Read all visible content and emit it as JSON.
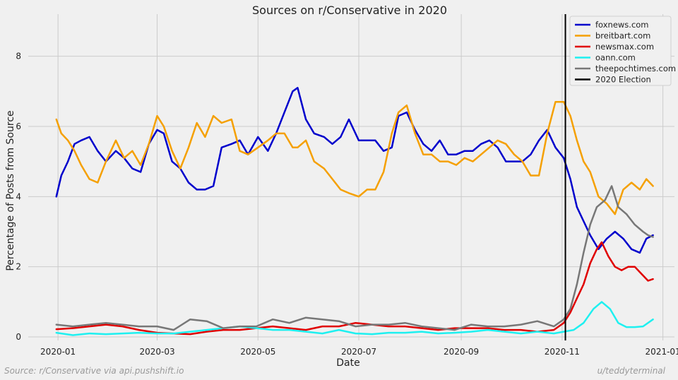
{
  "chart_data": {
    "type": "line",
    "title": "Sources on r/Conservative in 2020",
    "xlabel": "Date",
    "ylabel": "Percentage of Posts from Source",
    "x_ticks": [
      "2020-01",
      "2020-03",
      "2020-05",
      "2020-07",
      "2020-09",
      "2020-11",
      "2021-01"
    ],
    "x_tick_days": [
      0,
      60,
      121,
      182,
      244,
      305,
      366
    ],
    "y_ticks": [
      0,
      2,
      4,
      6,
      8
    ],
    "ylim": [
      -0.1,
      9.2
    ],
    "xlim": [
      "2019-12-14",
      "2021-01-08"
    ],
    "grid": true,
    "legend_position": "top-right",
    "series": [
      {
        "name": "foxnews.com",
        "color": "#0000cc",
        "x": [
          "2019-12-31",
          "2020-01-03",
          "2020-01-07",
          "2020-01-11",
          "2020-01-15",
          "2020-01-20",
          "2020-01-25",
          "2020-01-30",
          "2020-02-05",
          "2020-02-10",
          "2020-02-15",
          "2020-02-20",
          "2020-02-25",
          "2020-03-01",
          "2020-03-05",
          "2020-03-10",
          "2020-03-15",
          "2020-03-20",
          "2020-03-25",
          "2020-03-30",
          "2020-04-04",
          "2020-04-09",
          "2020-04-15",
          "2020-04-20",
          "2020-04-25",
          "2020-05-01",
          "2020-05-07",
          "2020-05-12",
          "2020-05-17",
          "2020-05-22",
          "2020-05-25",
          "2020-05-30",
          "2020-06-04",
          "2020-06-10",
          "2020-06-15",
          "2020-06-20",
          "2020-06-25",
          "2020-07-01",
          "2020-07-06",
          "2020-07-11",
          "2020-07-16",
          "2020-07-21",
          "2020-07-25",
          "2020-07-30",
          "2020-08-04",
          "2020-08-09",
          "2020-08-14",
          "2020-08-19",
          "2020-08-24",
          "2020-08-29",
          "2020-09-03",
          "2020-09-08",
          "2020-09-13",
          "2020-09-18",
          "2020-09-23",
          "2020-09-28",
          "2020-10-03",
          "2020-10-08",
          "2020-10-13",
          "2020-10-18",
          "2020-10-23",
          "2020-10-28",
          "2020-11-02",
          "2020-11-06",
          "2020-11-10",
          "2020-11-14",
          "2020-11-18",
          "2020-11-23",
          "2020-11-28",
          "2020-12-03",
          "2020-12-08",
          "2020-12-13",
          "2020-12-18",
          "2020-12-22",
          "2020-12-26"
        ],
        "values": [
          4.0,
          4.6,
          5.0,
          5.5,
          5.6,
          5.7,
          5.3,
          5.0,
          5.3,
          5.1,
          4.8,
          4.7,
          5.5,
          5.9,
          5.8,
          5.0,
          4.8,
          4.4,
          4.2,
          4.2,
          4.3,
          5.4,
          5.5,
          5.6,
          5.2,
          5.7,
          5.3,
          5.8,
          6.4,
          7.0,
          7.1,
          6.2,
          5.8,
          5.7,
          5.5,
          5.7,
          6.2,
          5.6,
          5.6,
          5.6,
          5.3,
          5.4,
          6.3,
          6.4,
          5.9,
          5.5,
          5.3,
          5.6,
          5.2,
          5.2,
          5.3,
          5.3,
          5.5,
          5.6,
          5.4,
          5.0,
          5.0,
          5.0,
          5.2,
          5.6,
          5.9,
          5.4,
          5.1,
          4.5,
          3.7,
          3.3,
          2.9,
          2.5,
          2.8,
          3.0,
          2.8,
          2.5,
          2.4,
          2.8,
          2.9
        ]
      },
      {
        "name": "breitbart.com",
        "color": "#f5a000",
        "x": [
          "2019-12-31",
          "2020-01-03",
          "2020-01-07",
          "2020-01-11",
          "2020-01-15",
          "2020-01-20",
          "2020-01-25",
          "2020-01-30",
          "2020-02-05",
          "2020-02-10",
          "2020-02-15",
          "2020-02-20",
          "2020-02-25",
          "2020-03-01",
          "2020-03-05",
          "2020-03-10",
          "2020-03-15",
          "2020-03-20",
          "2020-03-25",
          "2020-03-30",
          "2020-04-04",
          "2020-04-09",
          "2020-04-15",
          "2020-04-20",
          "2020-04-25",
          "2020-05-01",
          "2020-05-07",
          "2020-05-12",
          "2020-05-17",
          "2020-05-22",
          "2020-05-25",
          "2020-05-30",
          "2020-06-04",
          "2020-06-10",
          "2020-06-15",
          "2020-06-20",
          "2020-06-25",
          "2020-07-01",
          "2020-07-06",
          "2020-07-11",
          "2020-07-16",
          "2020-07-21",
          "2020-07-25",
          "2020-07-30",
          "2020-08-04",
          "2020-08-09",
          "2020-08-14",
          "2020-08-19",
          "2020-08-24",
          "2020-08-29",
          "2020-09-03",
          "2020-09-08",
          "2020-09-13",
          "2020-09-18",
          "2020-09-23",
          "2020-09-28",
          "2020-10-03",
          "2020-10-08",
          "2020-10-13",
          "2020-10-18",
          "2020-10-23",
          "2020-10-28",
          "2020-11-02",
          "2020-11-06",
          "2020-11-10",
          "2020-11-14",
          "2020-11-18",
          "2020-11-23",
          "2020-11-28",
          "2020-12-03",
          "2020-12-08",
          "2020-12-13",
          "2020-12-18",
          "2020-12-22",
          "2020-12-26"
        ],
        "values": [
          6.2,
          5.8,
          5.6,
          5.3,
          4.9,
          4.5,
          4.4,
          5.0,
          5.6,
          5.1,
          5.3,
          4.9,
          5.5,
          6.3,
          6.0,
          5.3,
          4.8,
          5.4,
          6.1,
          5.7,
          6.3,
          6.1,
          6.2,
          5.3,
          5.2,
          5.4,
          5.6,
          5.8,
          5.8,
          5.4,
          5.4,
          5.6,
          5.0,
          4.8,
          4.5,
          4.2,
          4.1,
          4.0,
          4.2,
          4.2,
          4.7,
          5.8,
          6.4,
          6.6,
          5.8,
          5.2,
          5.2,
          5.0,
          5.0,
          4.9,
          5.1,
          5.0,
          5.2,
          5.4,
          5.6,
          5.5,
          5.2,
          5.0,
          4.6,
          4.6,
          5.8,
          6.7,
          6.7,
          6.3,
          5.6,
          5.0,
          4.7,
          4.0,
          3.8,
          3.5,
          4.2,
          4.4,
          4.2,
          4.5,
          4.3
        ]
      },
      {
        "name": "newsmax.com",
        "color": "#e00000",
        "x": [
          "2019-12-31",
          "2020-01-10",
          "2020-01-20",
          "2020-01-30",
          "2020-02-09",
          "2020-02-19",
          "2020-03-01",
          "2020-03-11",
          "2020-03-21",
          "2020-03-31",
          "2020-04-10",
          "2020-04-20",
          "2020-04-30",
          "2020-05-10",
          "2020-05-20",
          "2020-05-30",
          "2020-06-09",
          "2020-06-19",
          "2020-06-29",
          "2020-07-09",
          "2020-07-19",
          "2020-07-29",
          "2020-08-08",
          "2020-08-18",
          "2020-08-28",
          "2020-09-07",
          "2020-09-17",
          "2020-09-27",
          "2020-10-07",
          "2020-10-17",
          "2020-10-27",
          "2020-11-02",
          "2020-11-06",
          "2020-11-10",
          "2020-11-14",
          "2020-11-18",
          "2020-11-22",
          "2020-11-25",
          "2020-11-29",
          "2020-12-03",
          "2020-12-07",
          "2020-12-11",
          "2020-12-15",
          "2020-12-19",
          "2020-12-23",
          "2020-12-26"
        ],
        "values": [
          0.22,
          0.25,
          0.3,
          0.35,
          0.3,
          0.2,
          0.12,
          0.1,
          0.08,
          0.15,
          0.2,
          0.2,
          0.25,
          0.3,
          0.25,
          0.2,
          0.3,
          0.3,
          0.4,
          0.35,
          0.3,
          0.3,
          0.25,
          0.2,
          0.25,
          0.25,
          0.25,
          0.2,
          0.2,
          0.15,
          0.2,
          0.4,
          0.7,
          1.1,
          1.5,
          2.1,
          2.5,
          2.7,
          2.3,
          2.0,
          1.9,
          2.0,
          2.0,
          1.8,
          1.6,
          1.65
        ]
      },
      {
        "name": "oann.com",
        "color": "#1ef0f0",
        "x": [
          "2019-12-31",
          "2020-01-10",
          "2020-01-20",
          "2020-01-30",
          "2020-02-09",
          "2020-02-19",
          "2020-03-01",
          "2020-03-11",
          "2020-03-21",
          "2020-03-31",
          "2020-04-10",
          "2020-04-20",
          "2020-04-30",
          "2020-05-10",
          "2020-05-20",
          "2020-05-30",
          "2020-06-09",
          "2020-06-19",
          "2020-06-29",
          "2020-07-09",
          "2020-07-19",
          "2020-07-29",
          "2020-08-08",
          "2020-08-18",
          "2020-08-28",
          "2020-09-07",
          "2020-09-17",
          "2020-09-27",
          "2020-10-07",
          "2020-10-17",
          "2020-10-27",
          "2020-11-02",
          "2020-11-08",
          "2020-11-14",
          "2020-11-20",
          "2020-11-25",
          "2020-11-30",
          "2020-12-05",
          "2020-12-10",
          "2020-12-15",
          "2020-12-20",
          "2020-12-26"
        ],
        "values": [
          0.12,
          0.05,
          0.1,
          0.08,
          0.1,
          0.12,
          0.1,
          0.1,
          0.15,
          0.2,
          0.25,
          0.3,
          0.25,
          0.2,
          0.2,
          0.15,
          0.1,
          0.2,
          0.1,
          0.08,
          0.12,
          0.12,
          0.15,
          0.1,
          0.12,
          0.15,
          0.2,
          0.15,
          0.1,
          0.15,
          0.1,
          0.15,
          0.2,
          0.4,
          0.8,
          1.0,
          0.8,
          0.4,
          0.28,
          0.28,
          0.3,
          0.5
        ]
      },
      {
        "name": "theepochtimes.com",
        "color": "#777777",
        "x": [
          "2019-12-31",
          "2020-01-10",
          "2020-01-20",
          "2020-01-30",
          "2020-02-09",
          "2020-02-19",
          "2020-03-01",
          "2020-03-11",
          "2020-03-21",
          "2020-03-31",
          "2020-04-10",
          "2020-04-20",
          "2020-04-30",
          "2020-05-10",
          "2020-05-20",
          "2020-05-30",
          "2020-06-09",
          "2020-06-19",
          "2020-06-29",
          "2020-07-09",
          "2020-07-19",
          "2020-07-29",
          "2020-08-08",
          "2020-08-18",
          "2020-08-28",
          "2020-09-07",
          "2020-09-17",
          "2020-09-27",
          "2020-10-07",
          "2020-10-17",
          "2020-10-27",
          "2020-11-02",
          "2020-11-06",
          "2020-11-10",
          "2020-11-14",
          "2020-11-18",
          "2020-11-22",
          "2020-11-27",
          "2020-12-01",
          "2020-12-05",
          "2020-12-10",
          "2020-12-15",
          "2020-12-20",
          "2020-12-23",
          "2020-12-26"
        ],
        "values": [
          0.35,
          0.3,
          0.35,
          0.4,
          0.35,
          0.3,
          0.3,
          0.2,
          0.5,
          0.45,
          0.25,
          0.3,
          0.3,
          0.5,
          0.4,
          0.55,
          0.5,
          0.45,
          0.3,
          0.35,
          0.35,
          0.4,
          0.3,
          0.25,
          0.2,
          0.35,
          0.3,
          0.3,
          0.35,
          0.45,
          0.3,
          0.5,
          0.8,
          1.5,
          2.4,
          3.2,
          3.7,
          3.9,
          4.3,
          3.7,
          3.5,
          3.2,
          3.0,
          2.9,
          2.85
        ]
      }
    ],
    "annotations": [
      {
        "type": "vline",
        "x": "2020-11-03",
        "label": "2020 Election",
        "color": "#000000"
      }
    ],
    "footer_left": "Source: r/Conservative via api.pushshift.io",
    "footer_right": "u/teddyterminal"
  }
}
